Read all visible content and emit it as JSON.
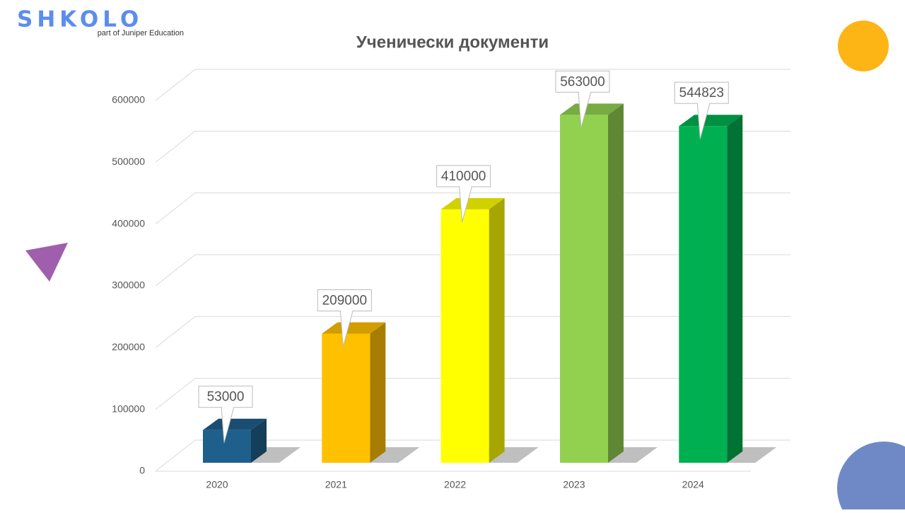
{
  "logo": {
    "name": "SHKOLO",
    "tagline": "part of Juniper Education"
  },
  "chart_data": {
    "type": "bar",
    "title": "Ученически документи",
    "categories": [
      "2020",
      "2021",
      "2022",
      "2023",
      "2024"
    ],
    "values": [
      53000,
      209000,
      410000,
      563000,
      544823
    ],
    "colors": [
      "#1f5f8b",
      "#ffc000",
      "#ffff00",
      "#92d050",
      "#00b050"
    ],
    "ylim": [
      0,
      600000
    ],
    "yticks": [
      0,
      100000,
      200000,
      300000,
      400000,
      500000,
      600000
    ],
    "grid": true
  }
}
